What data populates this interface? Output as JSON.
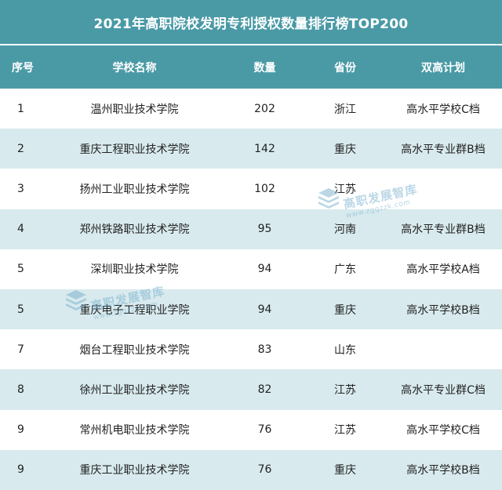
{
  "title": "2021年高职院校发明专利授权数量排行榜TOP200",
  "columns": [
    "序号",
    "学校名称",
    "数量",
    "省份",
    "双高计划"
  ],
  "rows": [
    {
      "rank": "1",
      "school": "温州职业技术学院",
      "count": "202",
      "province": "浙江",
      "plan": "高水平学校C档"
    },
    {
      "rank": "2",
      "school": "重庆工程职业技术学院",
      "count": "142",
      "province": "重庆",
      "plan": "高水平专业群B档"
    },
    {
      "rank": "3",
      "school": "扬州工业职业技术学院",
      "count": "102",
      "province": "江苏",
      "plan": ""
    },
    {
      "rank": "4",
      "school": "郑州铁路职业技术学院",
      "count": "95",
      "province": "河南",
      "plan": "高水平专业群B档"
    },
    {
      "rank": "5",
      "school": "深圳职业技术学院",
      "count": "94",
      "province": "广东",
      "plan": "高水平学校A档"
    },
    {
      "rank": "5",
      "school": "重庆电子工程职业学院",
      "count": "94",
      "province": "重庆",
      "plan": "高水平学校B档"
    },
    {
      "rank": "7",
      "school": "烟台工程职业技术学院",
      "count": "83",
      "province": "山东",
      "plan": ""
    },
    {
      "rank": "8",
      "school": "徐州工业职业技术学院",
      "count": "82",
      "province": "江苏",
      "plan": "高水平专业群C档"
    },
    {
      "rank": "9",
      "school": "常州机电职业技术学院",
      "count": "76",
      "province": "江苏",
      "plan": "高水平学校C档"
    },
    {
      "rank": "9",
      "school": "重庆工业职业技术学院",
      "count": "76",
      "province": "重庆",
      "plan": "高水平学校B档"
    }
  ],
  "watermark": {
    "name": "高职发展智库",
    "url": "www.zggzzk.com",
    "logo_icon": "stacked-books-logo-icon",
    "color": "#6aa8c8"
  },
  "colors": {
    "header": "#4a9aa6",
    "row_alt": "#d8eaee",
    "row": "#ffffff"
  }
}
